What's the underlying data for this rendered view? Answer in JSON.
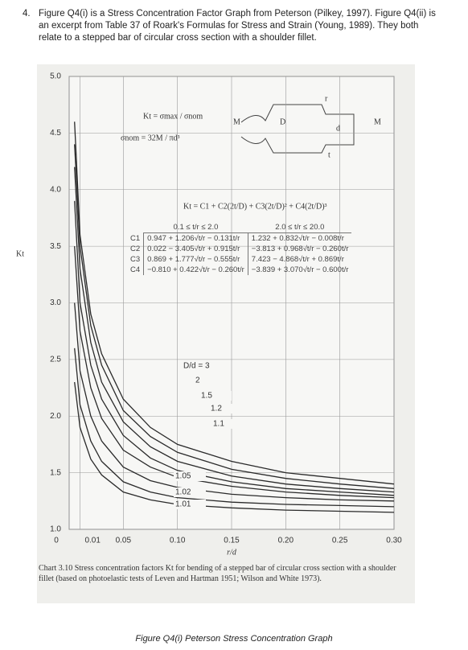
{
  "question": {
    "number": "4.",
    "text": "Figure Q4(i) is a Stress Concentration Factor Graph from Peterson (Pilkey, 1997). Figure Q4(ii) is an excerpt from Table 37 of Roark's Formulas for Stress and Strain (Young, 1989). They both relate to a stepped bar of circular cross section with a shoulder fillet."
  },
  "figure": {
    "type": "line",
    "xlabel": "r/d",
    "ylabel": "Kt",
    "color": "#2a2a2a",
    "grid": true,
    "xlim": [
      0,
      0.3
    ],
    "xticks": [
      0,
      0.01,
      0.05,
      {
        "value": 0.1,
        "label": "0.10"
      },
      0.15,
      {
        "value": 0.2,
        "label": "0.20"
      },
      0.25,
      {
        "value": 0.3,
        "label": "0.30"
      }
    ],
    "ylim": [
      1,
      5
    ],
    "yticks": [
      {
        "value": 1,
        "label": "1.0"
      },
      1.5,
      {
        "value": 2,
        "label": "2.0"
      },
      2.5,
      {
        "value": 3,
        "label": "3.0"
      },
      3.5,
      {
        "value": 4,
        "label": "4.0"
      },
      4.5,
      {
        "value": 5,
        "label": "5.0"
      }
    ],
    "x": [
      0.005,
      0.01,
      0.02,
      0.03,
      0.05,
      0.075,
      0.1,
      0.15,
      0.2,
      0.25,
      0.3
    ],
    "series": [
      {
        "name": "D/d = 3",
        "values": [
          4.6,
          3.6,
          2.9,
          2.55,
          2.15,
          1.9,
          1.75,
          1.6,
          1.5,
          1.45,
          1.4
        ]
      },
      {
        "name": "2",
        "values": [
          4.4,
          3.5,
          2.8,
          2.45,
          2.05,
          1.82,
          1.68,
          1.53,
          1.45,
          1.4,
          1.36
        ]
      },
      {
        "name": "1.5",
        "values": [
          4.2,
          3.3,
          2.65,
          2.3,
          1.95,
          1.73,
          1.6,
          1.47,
          1.4,
          1.36,
          1.33
        ]
      },
      {
        "name": "1.2",
        "values": [
          3.9,
          3.0,
          2.45,
          2.15,
          1.83,
          1.63,
          1.52,
          1.42,
          1.36,
          1.33,
          1.3
        ]
      },
      {
        "name": "1.1",
        "values": [
          3.5,
          2.75,
          2.25,
          1.98,
          1.7,
          1.55,
          1.46,
          1.38,
          1.33,
          1.3,
          1.28
        ]
      },
      {
        "name": "1.05",
        "values": [
          3.0,
          2.4,
          2.0,
          1.78,
          1.55,
          1.43,
          1.37,
          1.31,
          1.28,
          1.26,
          1.25
        ]
      },
      {
        "name": "1.02",
        "values": [
          2.6,
          2.1,
          1.78,
          1.6,
          1.42,
          1.33,
          1.28,
          1.24,
          1.22,
          1.21,
          1.2
        ]
      },
      {
        "name": "1.01",
        "values": [
          2.3,
          1.9,
          1.62,
          1.48,
          1.33,
          1.26,
          1.22,
          1.19,
          1.17,
          1.16,
          1.15
        ]
      }
    ],
    "definition": "Kt = σmax / σnom",
    "nominal": "σnom = 32M / πd³",
    "diagram": {
      "moment_left": "M",
      "moment_right": "M",
      "big_diameter": "D",
      "small_diameter": "d",
      "radius": "r",
      "step": "t"
    },
    "formula": "Kt = C1 + C2(2t/D) + C3(2t/D)² + C4(2t/D)³",
    "table": {
      "header": [
        "0.1 ≤ t/r ≤ 2.0",
        "2.0 ≤ t/r ≤ 20.0"
      ],
      "rows": [
        [
          "C1",
          "0.947 + 1.206√t/r − 0.131t/r",
          "1.232 + 0.832√t/r − 0.008t/r"
        ],
        [
          "C2",
          "0.022 − 3.405√t/r + 0.915t/r",
          "−3.813 + 0.968√t/r − 0.260t/r"
        ],
        [
          "C3",
          "0.869 + 1.777√t/r − 0.555t/r",
          "7.423 − 4.868√t/r + 0.869t/r"
        ],
        [
          "C4",
          "−0.810 + 0.422√t/r − 0.260t/r",
          "−3.839 + 3.070√t/r − 0.600t/r"
        ]
      ]
    },
    "chart_caption": "Chart 3.10 Stress concentration factors Kt for bending of a stepped bar of circular cross section with a shoulder fillet (based on photoelastic tests of Leven and Hartman 1951; Wilson and White 1973).",
    "caption": "Figure Q4(i) Peterson Stress Concentration Graph"
  }
}
